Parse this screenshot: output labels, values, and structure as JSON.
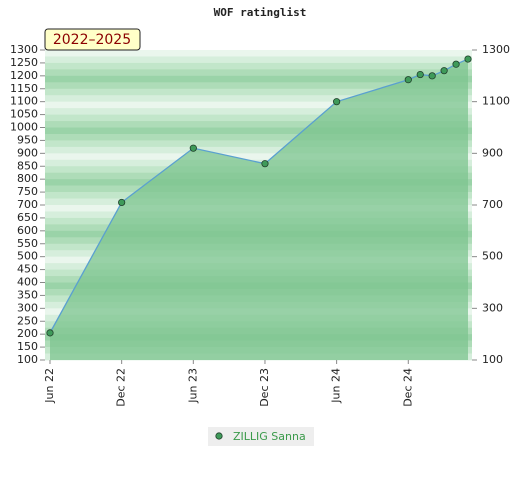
{
  "chart_data": {
    "type": "area",
    "title": "WOF ratinglist",
    "annotation": "2022–2025",
    "x": [
      "2022-06",
      "2022-12",
      "2023-06",
      "2023-12",
      "2024-06",
      "2024-12",
      "2025-01",
      "2025-02",
      "2025-03",
      "2025-04",
      "2025-05"
    ],
    "series": [
      {
        "name": "ZILLIG Sanna",
        "color": "#5aa0d0",
        "fill": "#7cc48f",
        "values": [
          205,
          710,
          920,
          860,
          1100,
          1185,
          1205,
          1200,
          1220,
          1245,
          1265
        ]
      }
    ],
    "xlim": [
      "2022-06",
      "2025-05"
    ],
    "xticks": [
      {
        "value": "2022-06",
        "label": "Jun 22"
      },
      {
        "value": "2022-12",
        "label": "Dec 22"
      },
      {
        "value": "2023-06",
        "label": "Jun 23"
      },
      {
        "value": "2023-12",
        "label": "Dec 23"
      },
      {
        "value": "2024-06",
        "label": "Jun 24"
      },
      {
        "value": "2024-12",
        "label": "Dec 24"
      }
    ],
    "ylim": [
      100,
      1300
    ],
    "yticks": [
      100,
      150,
      200,
      250,
      300,
      350,
      400,
      450,
      500,
      550,
      600,
      650,
      700,
      750,
      800,
      850,
      900,
      950,
      1000,
      1050,
      1100,
      1150,
      1200,
      1250,
      1300
    ],
    "y2lim": [
      100,
      1300
    ],
    "y2ticks": [
      100,
      300,
      500,
      700,
      900,
      1100,
      1300
    ]
  }
}
